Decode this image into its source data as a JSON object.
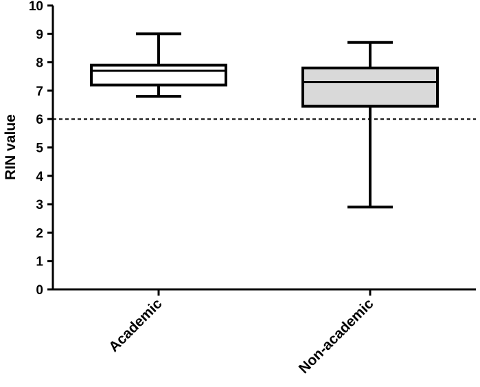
{
  "chart_data": {
    "type": "box",
    "ylabel": "RIN value",
    "ylim": [
      0,
      10
    ],
    "yticks": [
      0,
      1,
      2,
      3,
      4,
      5,
      6,
      7,
      8,
      9,
      10
    ],
    "grid": false,
    "reference_line": {
      "y": 6,
      "style": "dashed"
    },
    "categories": [
      "Academic",
      "Non-academic"
    ],
    "boxes": [
      {
        "category": "Academic",
        "min": 6.8,
        "q1": 7.2,
        "median": 7.7,
        "q3": 7.9,
        "max": 9.0,
        "fill": "#ffffff"
      },
      {
        "category": "Non-academic",
        "min": 2.9,
        "q1": 6.45,
        "median": 7.3,
        "q3": 7.8,
        "max": 8.7,
        "fill": "#d9d9d9"
      }
    ]
  }
}
